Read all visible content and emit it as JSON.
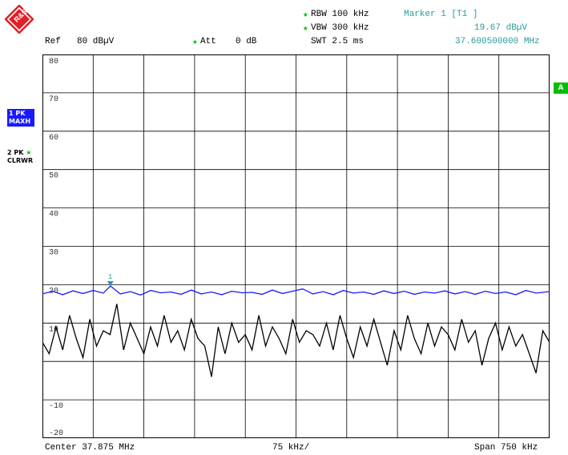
{
  "header": {
    "ref_label": "Ref",
    "ref_value": "80 dBµV",
    "att_label": "Att",
    "att_value": "0 dB",
    "rbw": "RBW 100 kHz",
    "vbw": "VBW 300 kHz",
    "swt": "SWT 2.5 ms",
    "marker_title": "Marker 1 [T1 ]",
    "marker_level": "19.67 dBµV",
    "marker_freq": "37.600500000 MHz"
  },
  "side": {
    "trace1_line1": "1 PK",
    "trace1_line2": "MAXH",
    "trace2_line1": "2 PK",
    "trace2_line2": "CLRWR",
    "badge_a": "A"
  },
  "footer": {
    "center": "Center 37.875 MHz",
    "per_div": "75 kHz/",
    "span": "Span 750 kHz"
  },
  "colors": {
    "trace1": "#1a1aff",
    "trace2": "#000000",
    "marker": "#2a9a9a",
    "accent": "#00c000",
    "logo": "#e0202a"
  },
  "chart_data": {
    "type": "line",
    "xlabel": "",
    "ylabel": "",
    "x_unit": "MHz",
    "y_unit": "dBµV",
    "xlim": [
      37.5,
      38.25
    ],
    "ylim": [
      -20,
      80
    ],
    "y_ticks": [
      "80",
      "70",
      "60",
      "50",
      "40",
      "30",
      "20",
      "10",
      "",
      "-10",
      "-20"
    ],
    "grid": true,
    "marker": {
      "label": "1",
      "x": 37.6005,
      "y": 19.67
    },
    "series": [
      {
        "name": "1 PK MAXH",
        "color": "#1a1aff",
        "x": [
          37.5,
          37.515,
          37.53,
          37.545,
          37.56,
          37.575,
          37.59,
          37.6005,
          37.615,
          37.63,
          37.645,
          37.66,
          37.675,
          37.69,
          37.705,
          37.72,
          37.735,
          37.75,
          37.765,
          37.78,
          37.795,
          37.81,
          37.825,
          37.84,
          37.855,
          37.87,
          37.885,
          37.9,
          37.915,
          37.93,
          37.945,
          37.96,
          37.975,
          37.99,
          38.005,
          38.02,
          38.035,
          38.05,
          38.065,
          38.08,
          38.095,
          38.11,
          38.125,
          38.14,
          38.155,
          38.17,
          38.185,
          38.2,
          38.215,
          38.23,
          38.25
        ],
        "y": [
          17.6,
          18.3,
          17.4,
          18.4,
          17.7,
          18.5,
          17.8,
          19.67,
          17.6,
          18.2,
          17.3,
          18.5,
          17.9,
          18.1,
          17.5,
          18.6,
          17.6,
          18.1,
          17.4,
          18.3,
          17.9,
          18.0,
          17.5,
          18.6,
          17.7,
          18.3,
          18.9,
          17.6,
          18.2,
          17.4,
          18.5,
          17.8,
          18.1,
          17.5,
          18.4,
          17.7,
          18.3,
          17.5,
          18.1,
          17.8,
          18.4,
          17.6,
          18.2,
          17.5,
          18.3,
          17.7,
          18.1,
          17.4,
          18.5,
          17.8,
          18.2
        ]
      },
      {
        "name": "2 PK CLRWR",
        "color": "#000000",
        "x": [
          37.5,
          37.51,
          37.52,
          37.53,
          37.54,
          37.55,
          37.56,
          37.57,
          37.58,
          37.59,
          37.6,
          37.61,
          37.62,
          37.63,
          37.64,
          37.65,
          37.66,
          37.67,
          37.68,
          37.69,
          37.7,
          37.71,
          37.72,
          37.73,
          37.74,
          37.75,
          37.76,
          37.77,
          37.78,
          37.79,
          37.8,
          37.81,
          37.82,
          37.83,
          37.84,
          37.85,
          37.86,
          37.87,
          37.88,
          37.89,
          37.9,
          37.91,
          37.92,
          37.93,
          37.94,
          37.95,
          37.96,
          37.97,
          37.98,
          37.99,
          38.0,
          38.01,
          38.02,
          38.03,
          38.04,
          38.05,
          38.06,
          38.07,
          38.08,
          38.09,
          38.1,
          38.11,
          38.12,
          38.13,
          38.14,
          38.15,
          38.16,
          38.17,
          38.18,
          38.19,
          38.2,
          38.21,
          38.22,
          38.23,
          38.24,
          38.25
        ],
        "y": [
          5,
          2,
          9,
          3,
          12,
          6,
          1,
          11,
          4,
          8,
          7,
          15,
          3,
          10,
          6,
          2,
          9,
          4,
          12,
          5,
          8,
          3,
          11,
          6,
          4,
          -4,
          9,
          2,
          10,
          5,
          7,
          3,
          12,
          4,
          9,
          6,
          2,
          11,
          5,
          8,
          7,
          4,
          10,
          3,
          12,
          6,
          1,
          9,
          4,
          11,
          5,
          -1,
          8,
          3,
          12,
          6,
          2,
          10,
          4,
          9,
          7,
          3,
          11,
          5,
          8,
          -1,
          6,
          10,
          3,
          9,
          4,
          7,
          2,
          -3,
          8,
          5
        ]
      }
    ]
  }
}
